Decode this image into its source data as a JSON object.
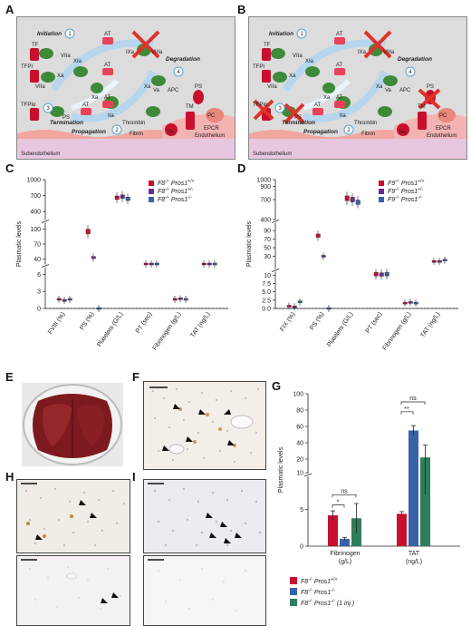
{
  "panels": {
    "a": "A",
    "b": "B",
    "c": "C",
    "d": "D",
    "e": "E",
    "f": "F",
    "g": "G",
    "h": "H",
    "i": "I"
  },
  "schematic": {
    "initiation": "Initiation",
    "propagation": "Propagation",
    "termination": "Termination",
    "degradation": "Degradation",
    "subendothelium": "Subendothelium",
    "endothelium": "Endothelium",
    "step1": "1",
    "step2": "2",
    "step3": "3",
    "step4": "4",
    "factors": {
      "tf": "TF",
      "tfpi": "TFPI",
      "tfpi_alpha": "TFPIα",
      "viia": "VIIa",
      "xa": "Xa",
      "va": "Va",
      "ixa": "IXa",
      "viiia": "VIIIa",
      "xia": "XIa",
      "at": "AT",
      "apc": "APC",
      "ps": "PS",
      "pc": "PC",
      "iia": "IIa",
      "tm": "TM",
      "thrombin": "Thrombin",
      "fibrin": "Fibrin",
      "epcr": "EPCR"
    }
  },
  "chart_data": [
    {
      "type": "box",
      "panel": "C",
      "ylabel": "Plasmatic levels",
      "categories": [
        "FVIII (%)",
        "PS (%)",
        "Platelets (G/L)",
        "PT (sec)",
        "Fibrinogen (g/L)",
        "TAT (ng/L)"
      ],
      "y_segments": [
        [
          0,
          7
        ],
        [
          30,
          110
        ],
        [
          250,
          1000
        ]
      ],
      "y_ticks": [
        [
          "0",
          "3",
          "6"
        ],
        [
          "40",
          "70",
          "100"
        ],
        [
          "400",
          "700",
          "1000"
        ]
      ],
      "colors": [
        "#c8102e",
        "#6a2c91",
        "#3a62a7"
      ],
      "series": [
        {
          "name": "F8-/- Pros1+/+",
          "legend": [
            "F8",
            "-/-",
            " Pros1",
            "+/+"
          ],
          "values": [
            1.6,
            95,
            660,
            9.0,
            1.6,
            7.5
          ]
        },
        {
          "name": "F8-/- Pros1+/-",
          "legend": [
            "F8",
            "-/-",
            " Pros1",
            "+/-"
          ],
          "values": [
            1.4,
            43,
            680,
            9.0,
            1.7,
            9.0
          ]
        },
        {
          "name": "F8-/- Pros1-/-",
          "legend": [
            "F8",
            "-/-",
            " Pros1",
            "-/-"
          ],
          "values": [
            1.6,
            0,
            640,
            9.0,
            1.6,
            11.5
          ]
        }
      ]
    },
    {
      "type": "box",
      "panel": "D",
      "ylabel": "Plasmatic levels",
      "categories": [
        "FIX (%)",
        "PS (%)",
        "Platelets (G/L)",
        "PT (sec)",
        "Fibrinogen (g/L)",
        "TAT (ng/L)"
      ],
      "y_segments": [
        [
          0,
          12
        ],
        [
          12,
          105
        ],
        [
          400,
          1000
        ]
      ],
      "y_ticks": [
        [
          "0.0",
          "2.5",
          "5.0",
          "7.5",
          "10"
        ],
        [
          "30",
          "50",
          "70",
          "90"
        ],
        [
          "400",
          "700",
          "900",
          "1000"
        ]
      ],
      "colors": [
        "#c8102e",
        "#6a2c91",
        "#3a62a7"
      ],
      "series": [
        {
          "name": "F9-/- Pros1+/+",
          "legend": [
            "F9",
            "-/-",
            " Pros1",
            "+/+"
          ],
          "values": [
            0.7,
            78,
            720,
            10.3,
            1.6,
            18
          ]
        },
        {
          "name": "F9-/- Pros1+/-",
          "legend": [
            "F9",
            "-/-",
            " Pros1",
            "+/-"
          ],
          "values": [
            0.5,
            30,
            700,
            10.2,
            1.8,
            18
          ]
        },
        {
          "name": "F9-/- Pros1-/-",
          "legend": [
            "F9",
            "-/-",
            " Pros1",
            "-/-"
          ],
          "values": [
            2.0,
            0,
            660,
            10.3,
            1.6,
            21
          ]
        }
      ]
    },
    {
      "type": "bar",
      "panel": "G",
      "ylabel": "Plasmatic levels",
      "categories": [
        "Fibrinogen\n(g/L)",
        "TAT\n(ng/L)"
      ],
      "cat_line1": [
        "Fibrinogen",
        "TAT"
      ],
      "cat_line2": [
        "(g/L)",
        "(ng/L)"
      ],
      "y_segments": [
        [
          0,
          10
        ],
        [
          10,
          100
        ]
      ],
      "y_ticks": [
        [
          "0",
          "5",
          "10"
        ],
        [
          "20",
          "40",
          "60",
          "80",
          "100"
        ]
      ],
      "colors": [
        "#c8102e",
        "#3a62a7",
        "#2e7d5b"
      ],
      "series": [
        {
          "name": "F8-/- Pros1+/+",
          "legend": [
            "F8",
            "-/-",
            " Pros1",
            "+/+"
          ],
          "values": [
            4.2,
            4.4
          ],
          "errors": [
            0.6,
            0.3
          ]
        },
        {
          "name": "F8-/- Pros1-/-",
          "legend": [
            "F8",
            "-/-",
            " Pros1",
            "-/-"
          ],
          "values": [
            1.0,
            55
          ],
          "errors": [
            0.2,
            6
          ]
        },
        {
          "name": "F8-/- Pros1-/- (1 inj.)",
          "legend": [
            "F8",
            "-/-",
            " Pros1",
            "-/-",
            " (1 inj.)"
          ],
          "values": [
            3.8,
            22
          ],
          "errors": [
            2.0,
            15
          ]
        }
      ],
      "significance": [
        "ns",
        "*",
        "ns",
        "**"
      ]
    }
  ]
}
